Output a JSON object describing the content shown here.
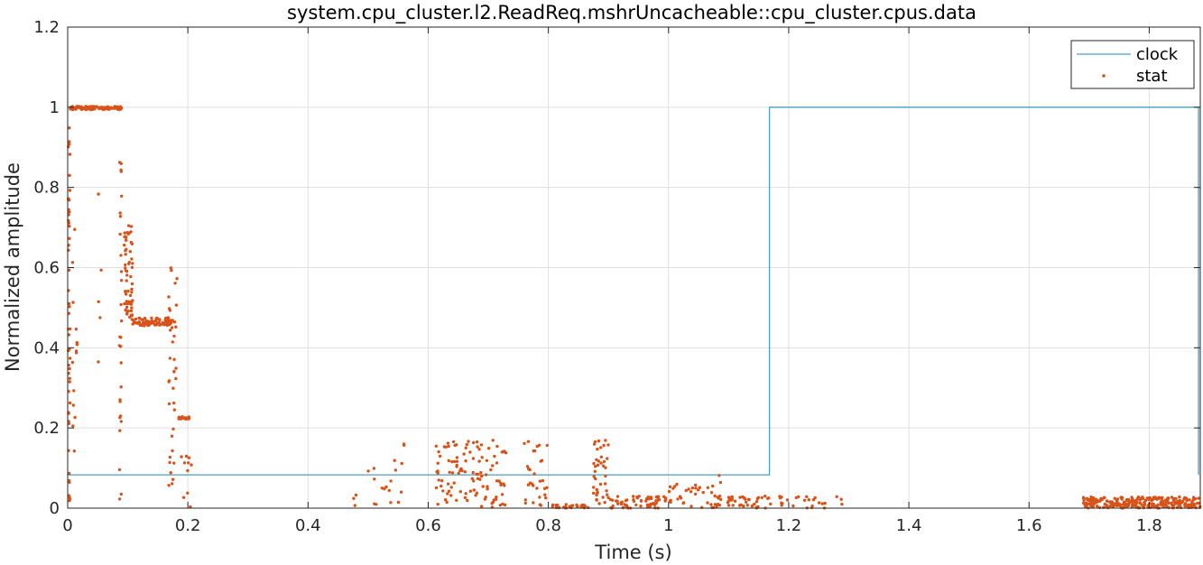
{
  "chart_data": {
    "type": "line",
    "title": "system.cpu_cluster.l2.ReadReq.mshrUncacheable::cpu_cluster.cpus.data",
    "xlabel": "Time (s)",
    "ylabel": "Normalized amplitude",
    "xlim": [
      0,
      1.885
    ],
    "ylim": [
      0,
      1.2
    ],
    "xticks": [
      0,
      0.2,
      0.4,
      0.6,
      0.8,
      1,
      1.2,
      1.4,
      1.6,
      1.8
    ],
    "xtick_labels": [
      "0",
      "0.2",
      "0.4",
      "0.6",
      "0.8",
      "1",
      "1.2",
      "1.4",
      "1.6",
      "1.8"
    ],
    "yticks": [
      0,
      0.2,
      0.4,
      0.6,
      0.8,
      1,
      1.2
    ],
    "ytick_labels": [
      "0",
      "0.2",
      "0.4",
      "0.6",
      "0.8",
      "1",
      "1.2"
    ],
    "grid": true,
    "legend_position": "top-right",
    "series": [
      {
        "name": "clock",
        "style": "step-line",
        "color": "#4a9fbf",
        "x": [
          0,
          1.168,
          1.168,
          1.882,
          1.882
        ],
        "y": [
          0.083,
          0.083,
          1.0,
          1.0,
          0.083
        ]
      },
      {
        "name": "stat",
        "style": "markers",
        "color": "#d95319",
        "clusters": [
          {
            "x": [
              0.001,
              0.004
            ],
            "y": [
              0.0,
              1.0
            ],
            "count": 50
          },
          {
            "x": [
              0.003,
              0.09
            ],
            "y": [
              0.994,
              1.002
            ],
            "count": 110
          },
          {
            "x": [
              0.008,
              0.016
            ],
            "y": [
              0.0,
              0.75
            ],
            "count": 14
          },
          {
            "x": [
              0.048,
              0.056
            ],
            "y": [
              0.0,
              0.8
            ],
            "count": 5
          },
          {
            "x": [
              0.086,
              0.09
            ],
            "y": [
              0.0,
              0.91
            ],
            "count": 28
          },
          {
            "x": [
              0.094,
              0.108
            ],
            "y": [
              0.47,
              0.71
            ],
            "count": 60
          },
          {
            "x": [
              0.108,
              0.175
            ],
            "y": [
              0.455,
              0.475
            ],
            "count": 90
          },
          {
            "x": [
              0.168,
              0.176
            ],
            "y": [
              0.0,
              0.66
            ],
            "count": 22
          },
          {
            "x": [
              0.176,
              0.182
            ],
            "y": [
              0.0,
              0.6
            ],
            "count": 14
          },
          {
            "x": [
              0.184,
              0.202
            ],
            "y": [
              0.222,
              0.228
            ],
            "count": 16
          },
          {
            "x": [
              0.188,
              0.21
            ],
            "y": [
              0.0,
              0.13
            ],
            "count": 10
          },
          {
            "x": [
              0.47,
              0.48
            ],
            "y": [
              0.0,
              0.04
            ],
            "count": 3
          },
          {
            "x": [
              0.5,
              0.56
            ],
            "y": [
              0.0,
              0.18
            ],
            "count": 18
          },
          {
            "x": [
              0.61,
              0.73
            ],
            "y": [
              0.0,
              0.17
            ],
            "count": 110
          },
          {
            "x": [
              0.76,
              0.8
            ],
            "y": [
              0.0,
              0.17
            ],
            "count": 30
          },
          {
            "x": [
              0.8,
              0.87
            ],
            "y": [
              0.0,
              0.01
            ],
            "count": 30
          },
          {
            "x": [
              0.875,
              0.9
            ],
            "y": [
              0.01,
              0.17
            ],
            "count": 40
          },
          {
            "x": [
              0.9,
              1.0
            ],
            "y": [
              0.0,
              0.03
            ],
            "count": 60
          },
          {
            "x": [
              1.0,
              1.08
            ],
            "y": [
              0.0,
              0.06
            ],
            "count": 35
          },
          {
            "x": [
              1.08,
              1.09
            ],
            "y": [
              0.0,
              0.095
            ],
            "count": 8
          },
          {
            "x": [
              1.09,
              1.17
            ],
            "y": [
              0.0,
              0.03
            ],
            "count": 40
          },
          {
            "x": [
              1.18,
              1.29
            ],
            "y": [
              0.0,
              0.03
            ],
            "count": 25
          },
          {
            "x": [
              1.69,
              1.885
            ],
            "y": [
              0.0,
              0.028
            ],
            "count": 260
          }
        ]
      }
    ]
  }
}
